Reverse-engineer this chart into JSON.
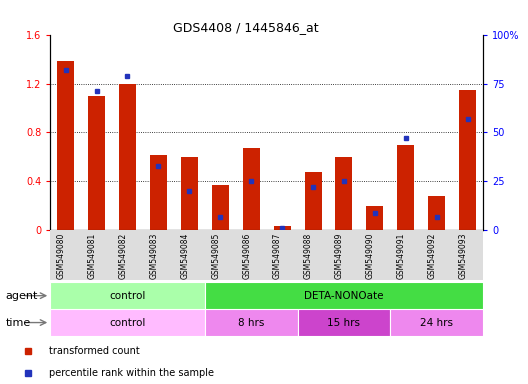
{
  "title": "GDS4408 / 1445846_at",
  "samples": [
    "GSM549080",
    "GSM549081",
    "GSM549082",
    "GSM549083",
    "GSM549084",
    "GSM549085",
    "GSM549086",
    "GSM549087",
    "GSM549088",
    "GSM549089",
    "GSM549090",
    "GSM549091",
    "GSM549092",
    "GSM549093"
  ],
  "red_values": [
    1.38,
    1.1,
    1.2,
    0.62,
    0.6,
    0.37,
    0.67,
    0.04,
    0.48,
    0.6,
    0.2,
    0.7,
    0.28,
    1.15
  ],
  "blue_pct": [
    82,
    71,
    79,
    33,
    20,
    7,
    25,
    1,
    22,
    25,
    9,
    47,
    7,
    57
  ],
  "ylim_left": [
    0,
    1.6
  ],
  "ylim_right": [
    0,
    100
  ],
  "yticks_left": [
    0,
    0.4,
    0.8,
    1.2,
    1.6
  ],
  "yticks_right": [
    0,
    25,
    50,
    75,
    100
  ],
  "bar_color": "#CC2200",
  "blue_color": "#2233BB",
  "agent_groups": [
    {
      "label": "control",
      "start": 0,
      "end": 5,
      "color": "#AAFFAA"
    },
    {
      "label": "DETA-NONOate",
      "start": 5,
      "end": 14,
      "color": "#44DD44"
    }
  ],
  "time_groups": [
    {
      "label": "control",
      "start": 0,
      "end": 5,
      "color": "#FFBBFF"
    },
    {
      "label": "8 hrs",
      "start": 5,
      "end": 8,
      "color": "#EE88EE"
    },
    {
      "label": "15 hrs",
      "start": 8,
      "end": 11,
      "color": "#CC44CC"
    },
    {
      "label": "24 hrs",
      "start": 11,
      "end": 14,
      "color": "#EE88EE"
    }
  ],
  "legend_items": [
    {
      "label": "transformed count",
      "color": "#CC2200",
      "marker": "s"
    },
    {
      "label": "percentile rank within the sample",
      "color": "#2233BB",
      "marker": "s"
    }
  ],
  "agent_label": "agent",
  "time_label": "time",
  "xtick_bg": "#DDDDDD"
}
